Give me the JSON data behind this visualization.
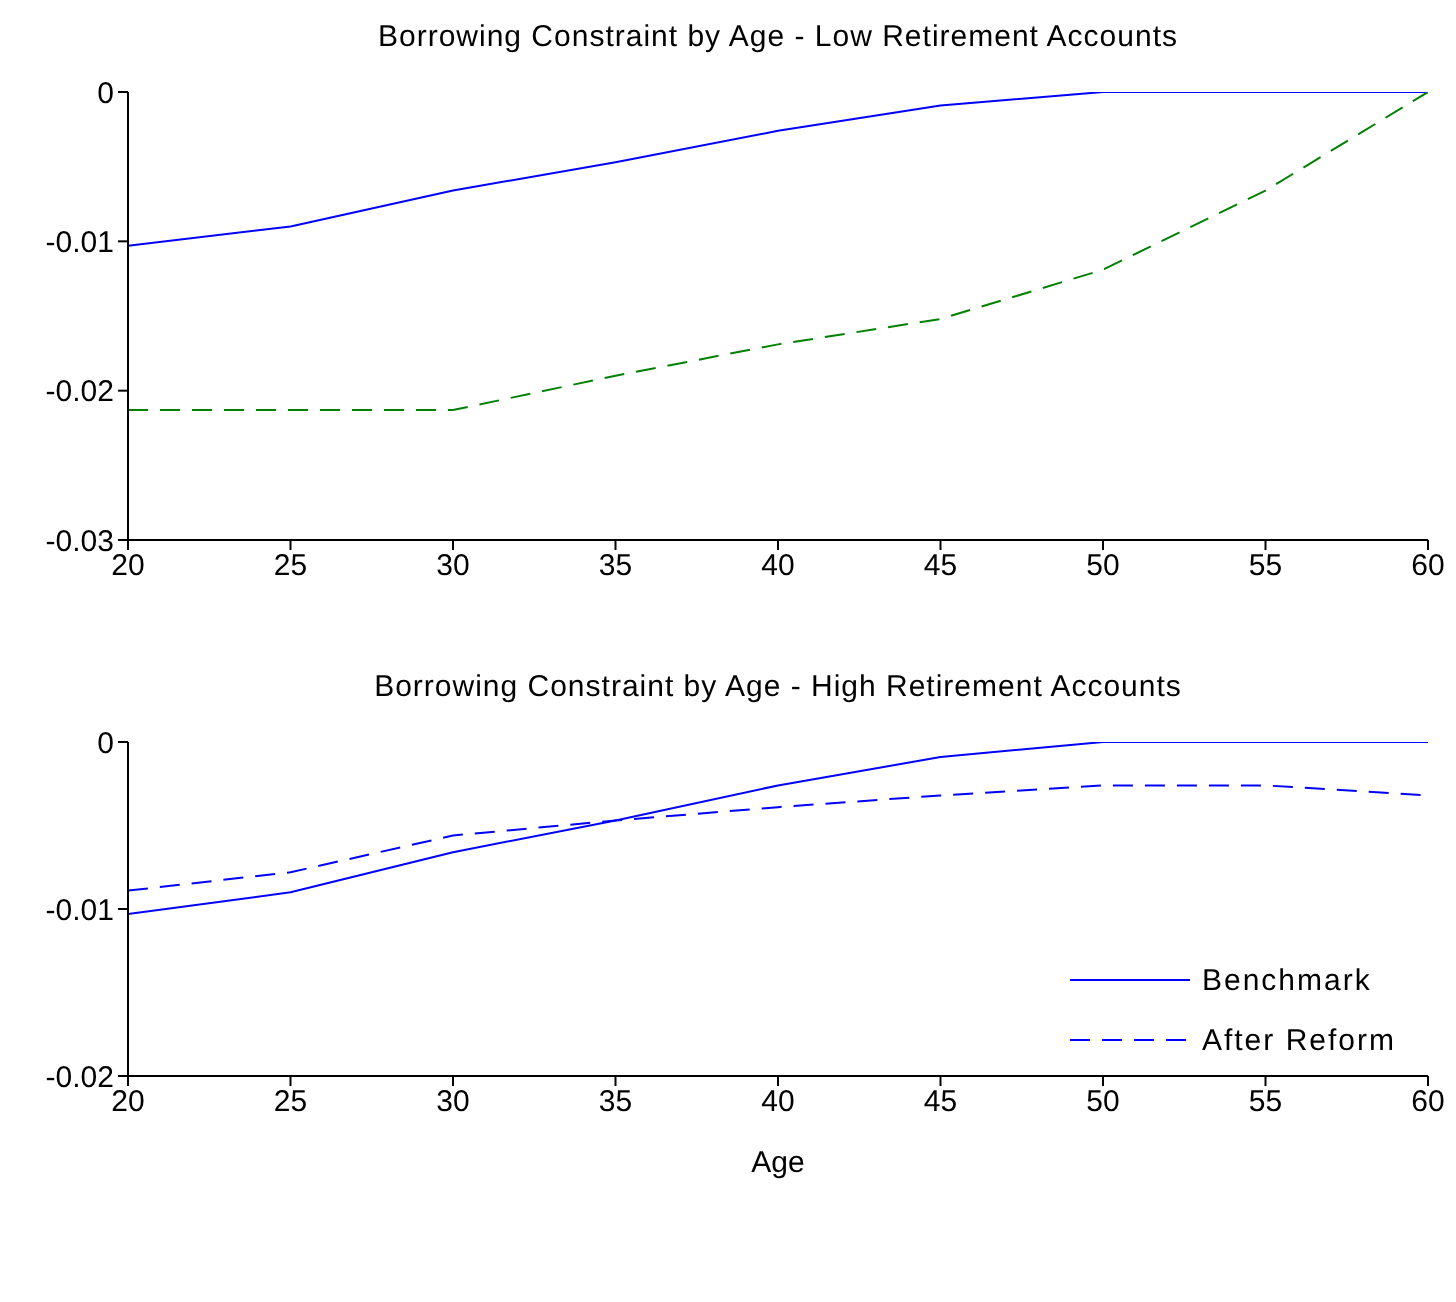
{
  "chart_data": [
    {
      "type": "line",
      "title": "Borrowing Constraint by  Age - Low Retirement Accounts",
      "x": [
        20,
        25,
        30,
        35,
        40,
        45,
        50,
        55,
        60
      ],
      "xlim": [
        20,
        60
      ],
      "xticks": [
        20,
        25,
        30,
        35,
        40,
        45,
        50,
        55,
        60
      ],
      "ylim": [
        -0.03,
        0
      ],
      "yticks": [
        -0.03,
        -0.02,
        -0.01,
        0
      ],
      "series": [
        {
          "color": "#0000ff",
          "line_style": "solid",
          "values": [
            -0.0103,
            -0.009,
            -0.0066,
            -0.0047,
            -0.0026,
            -0.0009,
            0,
            0,
            0
          ]
        },
        {
          "color": "#008000",
          "line_style": "dashed",
          "values": [
            -0.0213,
            -0.0213,
            -0.0213,
            -0.019,
            -0.0169,
            -0.0152,
            -0.0119,
            -0.0066,
            0
          ]
        }
      ]
    },
    {
      "type": "line",
      "title": "Borrowing Constraint by  Age - High Retirement Accounts",
      "xlabel": "Age",
      "x": [
        20,
        25,
        30,
        35,
        40,
        45,
        50,
        55,
        60
      ],
      "xlim": [
        20,
        60
      ],
      "xticks": [
        20,
        25,
        30,
        35,
        40,
        45,
        50,
        55,
        60
      ],
      "ylim": [
        -0.02,
        0
      ],
      "yticks": [
        -0.02,
        -0.01,
        0
      ],
      "legend": "right",
      "series": [
        {
          "name": "Benchmark",
          "color": "#0000ff",
          "line_style": "solid",
          "values": [
            -0.0103,
            -0.009,
            -0.0066,
            -0.0047,
            -0.0026,
            -0.0009,
            0,
            0,
            0
          ]
        },
        {
          "name": "After Reform",
          "color": "#0000ff",
          "line_style": "dashed",
          "values": [
            -0.0089,
            -0.0078,
            -0.0056,
            -0.0047,
            -0.0039,
            -0.0032,
            -0.0026,
            -0.0026,
            -0.0032
          ]
        }
      ]
    }
  ]
}
